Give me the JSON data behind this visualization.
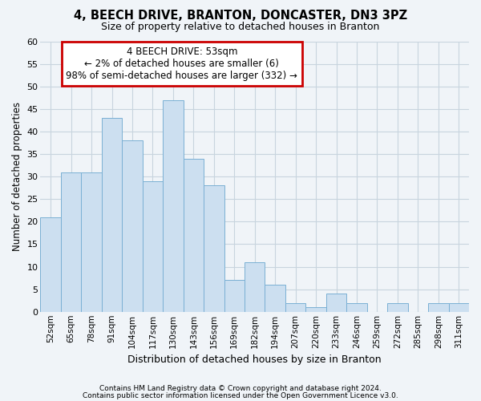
{
  "title1": "4, BEECH DRIVE, BRANTON, DONCASTER, DN3 3PZ",
  "title2": "Size of property relative to detached houses in Branton",
  "xlabel": "Distribution of detached houses by size in Branton",
  "ylabel": "Number of detached properties",
  "categories": [
    "52sqm",
    "65sqm",
    "78sqm",
    "91sqm",
    "104sqm",
    "117sqm",
    "130sqm",
    "143sqm",
    "156sqm",
    "169sqm",
    "182sqm",
    "194sqm",
    "207sqm",
    "220sqm",
    "233sqm",
    "246sqm",
    "259sqm",
    "272sqm",
    "285sqm",
    "298sqm",
    "311sqm"
  ],
  "values": [
    21,
    31,
    31,
    43,
    38,
    29,
    47,
    34,
    28,
    7,
    11,
    6,
    2,
    1,
    4,
    2,
    0,
    2,
    0,
    2,
    2
  ],
  "bar_color": "#ccdff0",
  "bar_edge_color": "#7ab0d4",
  "annotation_box_text": "4 BEECH DRIVE: 53sqm\n← 2% of detached houses are smaller (6)\n98% of semi-detached houses are larger (332) →",
  "annotation_box_color": "#ffffff",
  "annotation_box_edge_color": "#cc0000",
  "ylim": [
    0,
    60
  ],
  "yticks": [
    0,
    5,
    10,
    15,
    20,
    25,
    30,
    35,
    40,
    45,
    50,
    55,
    60
  ],
  "grid_color": "#c8d4de",
  "bg_color": "#f0f4f8",
  "footer1": "Contains HM Land Registry data © Crown copyright and database right 2024.",
  "footer2": "Contains public sector information licensed under the Open Government Licence v3.0."
}
